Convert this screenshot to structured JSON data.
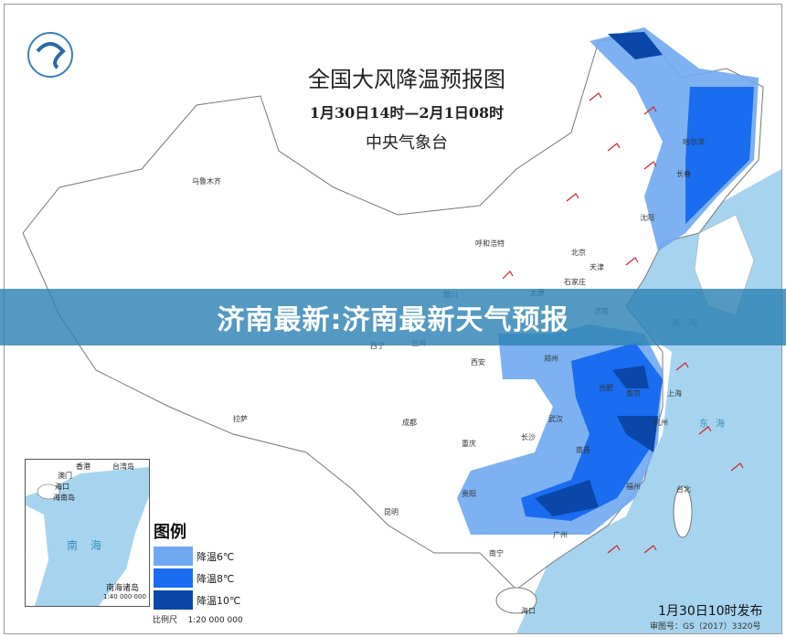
{
  "header": {
    "title": "全国大风降温预报图",
    "period": "1月30日14时—2月1日08时",
    "issuer": "中央气象台"
  },
  "banner": {
    "headline": "济南最新:济南最新天气预报"
  },
  "legend": {
    "title": "图例",
    "items": [
      {
        "label": "降温6℃",
        "color": "#6fa8f0"
      },
      {
        "label": "降温8℃",
        "color": "#1a6cf0"
      },
      {
        "label": "降温10℃",
        "color": "#0a47a8"
      }
    ],
    "scale": "比例尺    1:20 000 000"
  },
  "inset": {
    "labels": [
      "香港",
      "台湾岛",
      "澳门",
      "海口",
      "海南岛",
      "南海诸岛"
    ],
    "sea": "南海",
    "scale": "1:40 000 000"
  },
  "cities": [
    {
      "name": "乌鲁木齐"
    },
    {
      "name": "哈尔滨"
    },
    {
      "name": "长春"
    },
    {
      "name": "沈阳"
    },
    {
      "name": "呼和浩特"
    },
    {
      "name": "北京"
    },
    {
      "name": "天津"
    },
    {
      "name": "太原"
    },
    {
      "name": "石家庄"
    },
    {
      "name": "济南"
    },
    {
      "name": "银川"
    },
    {
      "name": "兰州"
    },
    {
      "name": "西宁"
    },
    {
      "name": "西安"
    },
    {
      "name": "郑州"
    },
    {
      "name": "合肥"
    },
    {
      "name": "南京"
    },
    {
      "name": "上海"
    },
    {
      "name": "杭州"
    },
    {
      "name": "武汉"
    },
    {
      "name": "成都"
    },
    {
      "name": "重庆"
    },
    {
      "name": "长沙"
    },
    {
      "name": "南昌"
    },
    {
      "name": "福州"
    },
    {
      "name": "拉萨"
    },
    {
      "name": "贵阳"
    },
    {
      "name": "昆明"
    },
    {
      "name": "南宁"
    },
    {
      "name": "广州"
    },
    {
      "name": "台北"
    },
    {
      "name": "海口"
    }
  ],
  "seas": [
    "东海",
    "黄海"
  ],
  "footer": {
    "issue_time": "1月30日10时发布",
    "approval": "审图号：GS（2017）3320号"
  },
  "colors": {
    "sea": "#a6d4ef",
    "banner": "#2d82b4",
    "land": "#ffffff",
    "wind_barb": "#d0202a"
  }
}
